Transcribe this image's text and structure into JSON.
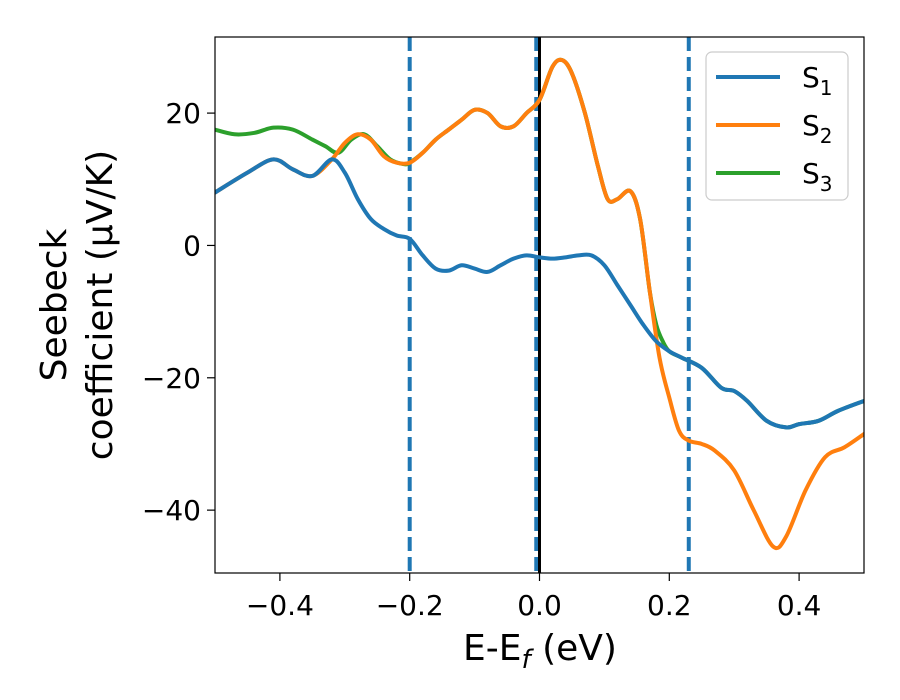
{
  "chart_data": {
    "type": "line",
    "xlabel_main": "E-E",
    "xlabel_sub": "f",
    "xlabel_tail": " (eV)",
    "ylabel_line1": "Seebeck",
    "ylabel_line2": "coefficient  (μV/K)",
    "xlim": [
      -0.5,
      0.5
    ],
    "ylim": [
      -49.5,
      31.5
    ],
    "x_ticks": [
      -0.4,
      -0.2,
      0.0,
      0.2,
      0.4
    ],
    "x_tick_labels": [
      "−0.4",
      "−0.2",
      "0.0",
      "0.2",
      "0.4"
    ],
    "y_ticks": [
      -40,
      -20,
      0,
      20
    ],
    "y_tick_labels": [
      "−40",
      "−20",
      "0",
      "20"
    ],
    "grid": false,
    "legend_position": "top-right",
    "vlines": [
      {
        "x": -0.2,
        "style": "dashed",
        "color": "#1f77b4"
      },
      {
        "x": -0.005,
        "style": "dashed",
        "color": "#1f77b4"
      },
      {
        "x": 0.0,
        "style": "solid",
        "color": "#000000"
      },
      {
        "x": 0.23,
        "style": "dashed",
        "color": "#1f77b4"
      }
    ],
    "series": [
      {
        "name": "S",
        "sub": "1",
        "color": "#1f77b4",
        "x": [
          -0.5,
          -0.45,
          -0.41,
          -0.38,
          -0.35,
          -0.32,
          -0.3,
          -0.28,
          -0.26,
          -0.24,
          -0.22,
          -0.2,
          -0.18,
          -0.16,
          -0.14,
          -0.12,
          -0.1,
          -0.08,
          -0.06,
          -0.04,
          -0.02,
          0.0,
          0.02,
          0.04,
          0.06,
          0.08,
          0.1,
          0.12,
          0.14,
          0.16,
          0.18,
          0.2,
          0.22,
          0.25,
          0.28,
          0.3,
          0.32,
          0.35,
          0.38,
          0.4,
          0.43,
          0.46,
          0.5
        ],
        "y": [
          8,
          11,
          13,
          11.5,
          10.5,
          13,
          11,
          7,
          4,
          2.5,
          1.5,
          1,
          -1.5,
          -3.5,
          -3.8,
          -3,
          -3.5,
          -4,
          -3,
          -2,
          -1.5,
          -1.8,
          -2,
          -1.8,
          -1.5,
          -1.5,
          -3,
          -6,
          -9,
          -12,
          -14.5,
          -16,
          -17,
          -18.5,
          -21.5,
          -22,
          -23.5,
          -26.5,
          -27.5,
          -27,
          -26.5,
          -25,
          -23.5
        ]
      },
      {
        "name": "S",
        "sub": "2",
        "color": "#ff7f0e",
        "x": [
          -0.5,
          -0.45,
          -0.41,
          -0.38,
          -0.35,
          -0.32,
          -0.3,
          -0.28,
          -0.26,
          -0.24,
          -0.22,
          -0.2,
          -0.18,
          -0.16,
          -0.14,
          -0.12,
          -0.1,
          -0.08,
          -0.06,
          -0.04,
          -0.02,
          0.0,
          0.02,
          0.035,
          0.05,
          0.07,
          0.09,
          0.105,
          0.12,
          0.14,
          0.155,
          0.17,
          0.185,
          0.2,
          0.215,
          0.23,
          0.25,
          0.27,
          0.3,
          0.33,
          0.36,
          0.38,
          0.41,
          0.44,
          0.47,
          0.5
        ],
        "y": [
          8,
          11,
          13,
          11.5,
          10.5,
          13,
          15.5,
          16.8,
          16,
          13.5,
          12.5,
          12.5,
          14,
          16,
          17.5,
          19,
          20.5,
          20,
          18,
          18,
          20,
          22,
          27,
          28,
          26,
          20,
          12,
          7,
          7,
          8.2,
          4,
          -7,
          -17,
          -23,
          -28,
          -29.5,
          -30,
          -31,
          -34,
          -40,
          -45.5,
          -44,
          -37,
          -32,
          -30.5,
          -28.5
        ]
      },
      {
        "name": "S",
        "sub": "3",
        "color": "#2ca02c",
        "x": [
          -0.5,
          -0.47,
          -0.44,
          -0.41,
          -0.38,
          -0.35,
          -0.33,
          -0.31,
          -0.29,
          -0.27,
          -0.25,
          -0.23,
          -0.21,
          -0.2,
          -0.18,
          -0.16,
          -0.14,
          -0.12,
          -0.1,
          -0.08,
          -0.06,
          -0.04,
          -0.02,
          0.0,
          0.02,
          0.035,
          0.05,
          0.07,
          0.09,
          0.105,
          0.12,
          0.14,
          0.155,
          0.17,
          0.18,
          0.19,
          0.2,
          0.22,
          0.25,
          0.28,
          0.3,
          0.32,
          0.35,
          0.38,
          0.4,
          0.43,
          0.46,
          0.5
        ],
        "y": [
          17.5,
          16.8,
          17,
          17.8,
          17.5,
          16,
          15,
          14,
          16,
          16.8,
          15,
          13,
          12.3,
          12.5,
          14,
          16,
          17.5,
          19,
          20.5,
          20,
          18,
          18,
          20,
          22,
          27,
          28,
          26,
          20,
          12,
          7,
          7,
          8.2,
          4,
          -7,
          -12,
          -14.5,
          -16,
          -17,
          -18.5,
          -21.5,
          -22,
          -23.5,
          -26.5,
          -27.5,
          -27,
          -26.5,
          -25,
          -23.5
        ]
      }
    ]
  }
}
